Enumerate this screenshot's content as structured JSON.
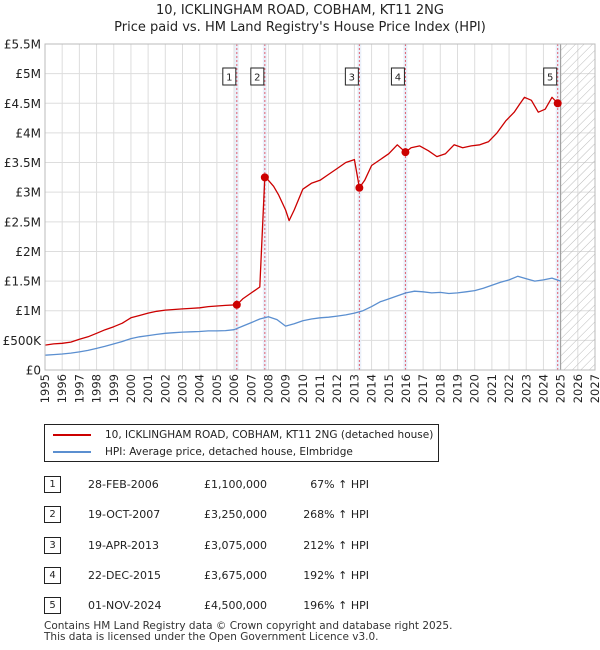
{
  "chart_data": {
    "type": "line",
    "title": "10, ICKLINGHAM ROAD, COBHAM, KT11 2NG",
    "subtitle": "Price paid vs. HM Land Registry's House Price Index (HPI)",
    "xlim": [
      1995,
      2027
    ],
    "ylim": [
      0,
      5500000
    ],
    "x_ticks": [
      "1995",
      "1996",
      "1997",
      "1998",
      "1999",
      "2000",
      "2001",
      "2002",
      "2003",
      "2004",
      "2005",
      "2006",
      "2007",
      "2008",
      "2009",
      "2010",
      "2011",
      "2012",
      "2013",
      "2014",
      "2015",
      "2016",
      "2017",
      "2018",
      "2019",
      "2020",
      "2021",
      "2022",
      "2023",
      "2024",
      "2025",
      "2026",
      "2027"
    ],
    "y_ticks": [
      {
        "value": 0,
        "label": "£0"
      },
      {
        "value": 500000,
        "label": "£500K"
      },
      {
        "value": 1000000,
        "label": "£1M"
      },
      {
        "value": 1500000,
        "label": "£1.5M"
      },
      {
        "value": 2000000,
        "label": "£2M"
      },
      {
        "value": 2500000,
        "label": "£2.5M"
      },
      {
        "value": 3000000,
        "label": "£3M"
      },
      {
        "value": 3500000,
        "label": "£3.5M"
      },
      {
        "value": 4000000,
        "label": "£4M"
      },
      {
        "value": 4500000,
        "label": "£4.5M"
      },
      {
        "value": 5000000,
        "label": "£5M"
      },
      {
        "value": 5500000,
        "label": "£5.5M"
      }
    ],
    "forecast_from": 2025.0,
    "series": [
      {
        "name": "10, ICKLINGHAM ROAD, COBHAM, KT11 2NG (detached house)",
        "color": "#cc0000",
        "x": [
          1995.0,
          1995.5,
          1996.0,
          1996.5,
          1997.0,
          1997.5,
          1998.0,
          1998.5,
          1999.0,
          1999.5,
          2000.0,
          2000.5,
          2001.0,
          2001.5,
          2002.0,
          2002.5,
          2003.0,
          2003.5,
          2004.0,
          2004.5,
          2005.0,
          2005.5,
          2006.16,
          2006.5,
          2007.0,
          2007.5,
          2007.79,
          2008.0,
          2008.3,
          2008.6,
          2009.0,
          2009.2,
          2009.5,
          2010.0,
          2010.5,
          2011.0,
          2011.5,
          2012.0,
          2012.5,
          2013.0,
          2013.29,
          2013.6,
          2014.0,
          2014.5,
          2015.0,
          2015.5,
          2015.97,
          2016.3,
          2016.8,
          2017.3,
          2017.8,
          2018.3,
          2018.8,
          2019.3,
          2019.8,
          2020.3,
          2020.8,
          2021.3,
          2021.8,
          2022.3,
          2022.6,
          2022.9,
          2023.3,
          2023.7,
          2024.1,
          2024.5,
          2024.83,
          2025.0
        ],
        "values": [
          420000,
          440000,
          450000,
          470000,
          520000,
          560000,
          620000,
          680000,
          730000,
          790000,
          880000,
          920000,
          960000,
          990000,
          1010000,
          1020000,
          1030000,
          1040000,
          1050000,
          1070000,
          1080000,
          1090000,
          1100000,
          1200000,
          1300000,
          1400000,
          3250000,
          3200000,
          3100000,
          2950000,
          2700000,
          2520000,
          2700000,
          3050000,
          3150000,
          3200000,
          3300000,
          3400000,
          3500000,
          3550000,
          3075000,
          3200000,
          3450000,
          3550000,
          3650000,
          3800000,
          3675000,
          3750000,
          3780000,
          3700000,
          3600000,
          3650000,
          3800000,
          3750000,
          3780000,
          3800000,
          3850000,
          4000000,
          4200000,
          4350000,
          4480000,
          4600000,
          4550000,
          4350000,
          4400000,
          4600000,
          4500000,
          4450000
        ]
      },
      {
        "name": "HPI: Average price, detached house, Elmbridge",
        "color": "#5b8fd0",
        "x": [
          1995.0,
          1995.5,
          1996.0,
          1996.5,
          1997.0,
          1997.5,
          1998.0,
          1998.5,
          1999.0,
          1999.5,
          2000.0,
          2000.5,
          2001.0,
          2001.5,
          2002.0,
          2002.5,
          2003.0,
          2003.5,
          2004.0,
          2004.5,
          2005.0,
          2005.5,
          2006.0,
          2006.5,
          2007.0,
          2007.5,
          2008.0,
          2008.5,
          2009.0,
          2009.5,
          2010.0,
          2010.5,
          2011.0,
          2011.5,
          2012.0,
          2012.5,
          2013.0,
          2013.5,
          2014.0,
          2014.5,
          2015.0,
          2015.5,
          2016.0,
          2016.5,
          2017.0,
          2017.5,
          2018.0,
          2018.5,
          2019.0,
          2019.5,
          2020.0,
          2020.5,
          2021.0,
          2021.5,
          2022.0,
          2022.5,
          2023.0,
          2023.5,
          2024.0,
          2024.5,
          2025.0
        ],
        "values": [
          250000,
          260000,
          270000,
          285000,
          305000,
          330000,
          365000,
          400000,
          440000,
          480000,
          530000,
          560000,
          580000,
          600000,
          620000,
          630000,
          640000,
          645000,
          650000,
          660000,
          660000,
          665000,
          680000,
          740000,
          800000,
          860000,
          900000,
          850000,
          740000,
          780000,
          830000,
          860000,
          880000,
          890000,
          910000,
          930000,
          960000,
          1000000,
          1070000,
          1150000,
          1200000,
          1250000,
          1300000,
          1330000,
          1320000,
          1300000,
          1310000,
          1290000,
          1300000,
          1320000,
          1340000,
          1380000,
          1430000,
          1480000,
          1520000,
          1580000,
          1540000,
          1500000,
          1520000,
          1550000,
          1500000
        ]
      }
    ],
    "sales": [
      {
        "label": "1",
        "x": 2006.16,
        "value": 1100000,
        "date": "28-FEB-2006",
        "price": "£1,100,000",
        "hpi": "67% ↑ HPI"
      },
      {
        "label": "2",
        "x": 2007.79,
        "value": 3250000,
        "date": "19-OCT-2007",
        "price": "£3,250,000",
        "hpi": "268% ↑ HPI"
      },
      {
        "label": "3",
        "x": 2013.29,
        "value": 3075000,
        "date": "19-APR-2013",
        "price": "£3,075,000",
        "hpi": "212% ↑ HPI"
      },
      {
        "label": "4",
        "x": 2015.97,
        "value": 3675000,
        "date": "22-DEC-2015",
        "price": "£3,675,000",
        "hpi": "192% ↑ HPI"
      },
      {
        "label": "5",
        "x": 2024.83,
        "value": 4500000,
        "date": "01-NOV-2024",
        "price": "£4,500,000",
        "hpi": "196% ↑ HPI"
      }
    ]
  },
  "legend": {
    "property_label": "10, ICKLINGHAM ROAD, COBHAM, KT11 2NG (detached house)",
    "hpi_label": "HPI: Average price, detached house, Elmbridge"
  },
  "footer": {
    "line1": "Contains HM Land Registry data © Crown copyright and database right 2025.",
    "line2": "This data is licensed under the Open Government Licence v3.0."
  }
}
